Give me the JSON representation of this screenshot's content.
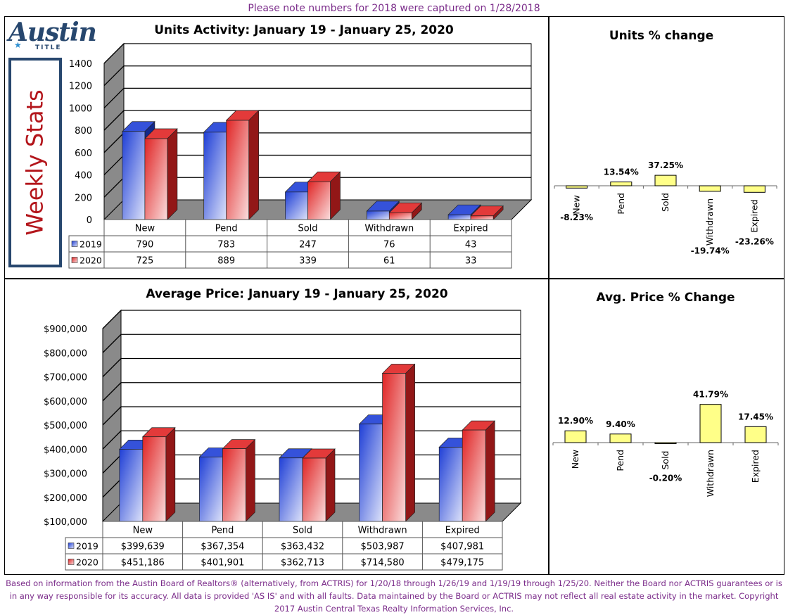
{
  "note": "Please note numbers for 2018 were captured on 1/28/2018",
  "logo": {
    "word": "Austin",
    "sub": "TITLE"
  },
  "side_label": "Weekly Stats",
  "footer": "Based on information from the Austin Board of Realtors® (alternatively, from ACTRIS) for 1/20/18 through 1/26/19 and 1/19/19 through 1/25/20.  Neither the Board nor ACTRIS guarantees or is in any way responsible for its accuracy.  All data is provided 'AS IS' and with all faults.  Data maintained by the Board or ACTRIS may not reflect all real estate activity in the market.  Copyright 2017 Austin Central Texas Realty Information Services, Inc.",
  "colors": {
    "y2019": "#1f3fd6",
    "y2020": "#e02424",
    "pct": "#ffff88"
  },
  "chart_data": [
    {
      "id": "units",
      "type": "bar",
      "title": "Units Activity:  January 19 - January 25, 2020",
      "categories": [
        "New",
        "Pend",
        "Sold",
        "Withdrawn",
        "Expired"
      ],
      "series": [
        {
          "name": "2019",
          "values": [
            790,
            783,
            247,
            76,
            43
          ],
          "labels": [
            "790",
            "783",
            "247",
            "76",
            "43"
          ]
        },
        {
          "name": "2020",
          "values": [
            725,
            889,
            339,
            61,
            33
          ],
          "labels": [
            "725",
            "889",
            "339",
            "61",
            "33"
          ]
        }
      ],
      "ylim": [
        0,
        1400
      ],
      "yticks": [
        "0",
        "200",
        "400",
        "600",
        "800",
        "1000",
        "1200",
        "1400"
      ],
      "grid": true
    },
    {
      "id": "units-pct",
      "type": "bar",
      "title": "Units % change",
      "categories": [
        "New",
        "Pend",
        "Sold",
        "Withdrawn",
        "Expired"
      ],
      "values": [
        -8.23,
        13.54,
        37.25,
        -19.74,
        -23.26
      ],
      "labels": [
        "-8.23%",
        "13.54%",
        "37.25%",
        "-19.74%",
        "-23.26%"
      ]
    },
    {
      "id": "price",
      "type": "bar",
      "title": "Average Price:  January 19 - January 25, 2020",
      "categories": [
        "New",
        "Pend",
        "Sold",
        "Withdrawn",
        "Expired"
      ],
      "series": [
        {
          "name": "2019",
          "values": [
            399639,
            367354,
            363432,
            503987,
            407981
          ],
          "labels": [
            "$399,639",
            "$367,354",
            "$363,432",
            "$503,987",
            "$407,981"
          ]
        },
        {
          "name": "2020",
          "values": [
            451186,
            401901,
            362713,
            714580,
            479175
          ],
          "labels": [
            "$451,186",
            "$401,901",
            "$362,713",
            "$714,580",
            "$479,175"
          ]
        }
      ],
      "ylim": [
        100000,
        900000
      ],
      "yticks": [
        "$100,000",
        "$200,000",
        "$300,000",
        "$400,000",
        "$500,000",
        "$600,000",
        "$700,000",
        "$800,000",
        "$900,000"
      ],
      "grid": true
    },
    {
      "id": "price-pct",
      "type": "bar",
      "title": "Avg. Price % Change",
      "categories": [
        "New",
        "Pend",
        "Sold",
        "Withdrawn",
        "Expired"
      ],
      "values": [
        12.9,
        9.4,
        -0.2,
        41.79,
        17.45
      ],
      "labels": [
        "12.90%",
        "9.40%",
        "-0.20%",
        "41.79%",
        "17.45%"
      ]
    }
  ]
}
